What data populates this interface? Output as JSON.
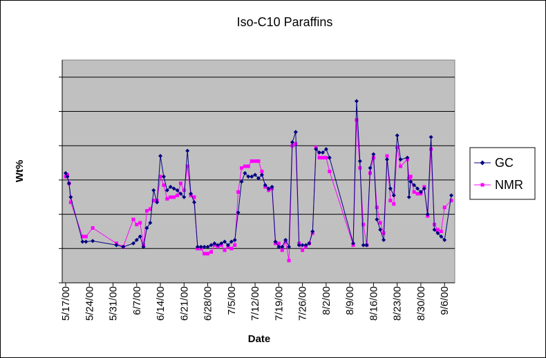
{
  "chart_data": {
    "type": "line",
    "title": "Iso-C10 Paraffins",
    "xlabel": "Date",
    "ylabel": "Wt%",
    "x_tick_labels": [
      "5/17/00",
      "5/24/00",
      "5/31/00",
      "6/7/00",
      "6/14/00",
      "6/21/00",
      "6/28/00",
      "7/5/00",
      "7/12/00",
      "7/19/00",
      "7/26/00",
      "8/2/00",
      "8/9/00",
      "8/16/00",
      "8/23/00",
      "8/30/00",
      "9/6/00"
    ],
    "xlim": [
      0,
      114
    ],
    "ylim": [
      -1.0,
      5.5
    ],
    "y_gridlines": [
      0,
      1,
      2,
      3,
      4,
      5
    ],
    "legend_position": "right",
    "series": [
      {
        "name": "GC",
        "color": "#000080",
        "marker": "diamond",
        "points": [
          [
            0,
            2.2
          ],
          [
            0.5,
            2.1
          ],
          [
            1,
            1.9
          ],
          [
            1.5,
            1.5
          ],
          [
            5,
            0.2
          ],
          [
            6,
            0.2
          ],
          [
            8,
            0.22
          ],
          [
            15,
            0.1
          ],
          [
            17,
            0.05
          ],
          [
            20,
            0.15
          ],
          [
            21,
            0.25
          ],
          [
            22,
            0.35
          ],
          [
            23,
            0.05
          ],
          [
            24,
            0.6
          ],
          [
            25,
            0.75
          ],
          [
            26,
            1.7
          ],
          [
            27,
            1.35
          ],
          [
            28,
            2.7
          ],
          [
            29,
            2.1
          ],
          [
            30,
            1.7
          ],
          [
            31,
            1.8
          ],
          [
            32,
            1.75
          ],
          [
            33,
            1.7
          ],
          [
            34,
            1.6
          ],
          [
            35,
            1.5
          ],
          [
            36,
            2.85
          ],
          [
            37,
            1.6
          ],
          [
            38,
            1.35
          ],
          [
            39,
            0.05
          ],
          [
            40,
            0.05
          ],
          [
            41,
            0.05
          ],
          [
            42,
            0.05
          ],
          [
            43,
            0.1
          ],
          [
            44,
            0.15
          ],
          [
            45,
            0.1
          ],
          [
            46,
            0.15
          ],
          [
            47,
            0.2
          ],
          [
            48,
            0.1
          ],
          [
            49,
            0.2
          ],
          [
            50,
            0.25
          ],
          [
            51,
            1.05
          ],
          [
            52,
            1.95
          ],
          [
            53,
            2.2
          ],
          [
            54,
            2.1
          ],
          [
            55,
            2.1
          ],
          [
            56,
            2.15
          ],
          [
            57,
            2.05
          ],
          [
            58,
            2.15
          ],
          [
            59,
            1.85
          ],
          [
            60,
            1.75
          ],
          [
            61,
            1.8
          ],
          [
            62,
            0.2
          ],
          [
            63,
            0.05
          ],
          [
            64,
            0.05
          ],
          [
            65,
            0.25
          ],
          [
            66,
            0.05
          ],
          [
            67,
            3.1
          ],
          [
            68,
            3.4
          ],
          [
            69,
            0.1
          ],
          [
            70,
            0.1
          ],
          [
            71,
            0.1
          ],
          [
            72,
            0.15
          ],
          [
            73,
            0.5
          ],
          [
            74,
            2.9
          ],
          [
            75,
            2.8
          ],
          [
            76,
            2.8
          ],
          [
            77,
            2.9
          ],
          [
            78,
            2.65
          ],
          [
            85,
            0.15
          ],
          [
            86,
            4.3
          ],
          [
            87,
            2.55
          ],
          [
            88,
            0.1
          ],
          [
            89,
            0.1
          ],
          [
            90,
            2.35
          ],
          [
            91,
            2.75
          ],
          [
            92,
            0.85
          ],
          [
            93,
            0.55
          ],
          [
            94,
            0.25
          ],
          [
            95,
            2.6
          ],
          [
            96,
            1.75
          ],
          [
            97,
            1.55
          ],
          [
            98,
            3.3
          ],
          [
            99,
            2.6
          ],
          [
            101,
            2.65
          ],
          [
            101.5,
            1.5
          ],
          [
            102,
            1.95
          ],
          [
            103,
            1.85
          ],
          [
            104,
            1.75
          ],
          [
            105,
            1.65
          ],
          [
            106,
            1.75
          ],
          [
            107,
            1.0
          ],
          [
            108,
            3.25
          ],
          [
            109,
            0.55
          ],
          [
            110,
            0.45
          ],
          [
            111,
            0.35
          ],
          [
            112,
            0.25
          ],
          [
            114,
            1.55
          ]
        ]
      },
      {
        "name": "NMR",
        "color": "#ff00ff",
        "marker": "square",
        "points": [
          [
            0,
            2.1
          ],
          [
            0.5,
            2.15
          ],
          [
            1,
            1.9
          ],
          [
            1.5,
            1.35
          ],
          [
            5,
            0.35
          ],
          [
            6,
            0.35
          ],
          [
            8,
            0.6
          ],
          [
            15,
            0.15
          ],
          [
            17,
            0.05
          ],
          [
            20,
            0.85
          ],
          [
            21,
            0.7
          ],
          [
            22,
            0.75
          ],
          [
            23,
            0.1
          ],
          [
            24,
            1.1
          ],
          [
            25,
            1.15
          ],
          [
            26,
            1.4
          ],
          [
            27,
            1.4
          ],
          [
            28,
            2.1
          ],
          [
            29,
            1.85
          ],
          [
            30,
            1.45
          ],
          [
            31,
            1.5
          ],
          [
            32,
            1.5
          ],
          [
            33,
            1.55
          ],
          [
            34,
            1.9
          ],
          [
            35,
            1.7
          ],
          [
            36,
            2.4
          ],
          [
            37,
            1.55
          ],
          [
            38,
            1.5
          ],
          [
            39,
            0.0
          ],
          [
            40,
            0.0
          ],
          [
            41,
            -0.15
          ],
          [
            42,
            -0.15
          ],
          [
            43,
            -0.1
          ],
          [
            44,
            0.1
          ],
          [
            45,
            0.05
          ],
          [
            46,
            0.1
          ],
          [
            47,
            -0.05
          ],
          [
            48,
            0.05
          ],
          [
            49,
            0.0
          ],
          [
            50,
            0.1
          ],
          [
            51,
            1.65
          ],
          [
            52,
            2.35
          ],
          [
            53,
            2.4
          ],
          [
            54,
            2.4
          ],
          [
            55,
            2.55
          ],
          [
            56,
            2.55
          ],
          [
            57,
            2.55
          ],
          [
            58,
            2.25
          ],
          [
            59,
            1.8
          ],
          [
            60,
            1.7
          ],
          [
            61,
            1.75
          ],
          [
            62,
            0.15
          ],
          [
            63,
            0.15
          ],
          [
            64,
            -0.05
          ],
          [
            65,
            0.2
          ],
          [
            66,
            -0.35
          ],
          [
            67,
            3.0
          ],
          [
            68,
            3.05
          ],
          [
            69,
            0.15
          ],
          [
            70,
            -0.05
          ],
          [
            71,
            0.05
          ],
          [
            72,
            0.15
          ],
          [
            73,
            0.45
          ],
          [
            74,
            2.95
          ],
          [
            75,
            2.65
          ],
          [
            76,
            2.65
          ],
          [
            77,
            2.65
          ],
          [
            78,
            2.25
          ],
          [
            85,
            0.1
          ],
          [
            86,
            3.75
          ],
          [
            87,
            2.35
          ],
          [
            88,
            0.7
          ],
          [
            89,
            0.1
          ],
          [
            90,
            2.2
          ],
          [
            91,
            2.65
          ],
          [
            92,
            1.2
          ],
          [
            93,
            0.75
          ],
          [
            94,
            0.45
          ],
          [
            95,
            2.7
          ],
          [
            96,
            1.4
          ],
          [
            97,
            1.3
          ],
          [
            98,
            2.95
          ],
          [
            99,
            2.4
          ],
          [
            101,
            2.6
          ],
          [
            101.5,
            2.05
          ],
          [
            102,
            2.1
          ],
          [
            103,
            1.65
          ],
          [
            104,
            1.6
          ],
          [
            105,
            1.6
          ],
          [
            106,
            1.8
          ],
          [
            107,
            0.95
          ],
          [
            108,
            2.9
          ],
          [
            109,
            0.7
          ],
          [
            110,
            0.55
          ],
          [
            111,
            0.5
          ],
          [
            112,
            1.2
          ],
          [
            114,
            1.4
          ]
        ]
      }
    ]
  }
}
